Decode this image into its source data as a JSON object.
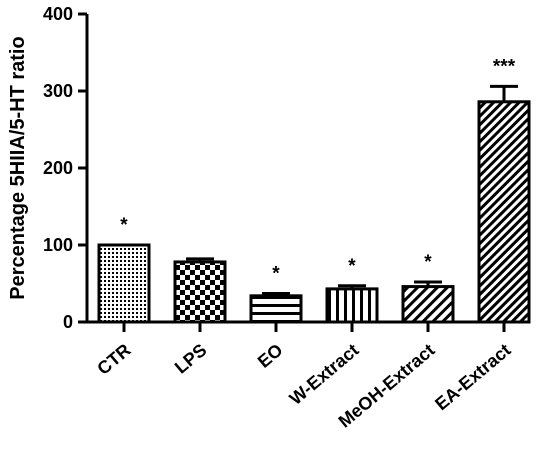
{
  "chart_data": {
    "type": "bar",
    "title": "",
    "xlabel": "",
    "ylabel": "Percentage 5HIIA/5-HT ratio",
    "ylim": [
      0,
      400
    ],
    "y_ticks": [
      0,
      100,
      200,
      300,
      400
    ],
    "y_tick_labels": [
      "0",
      "100",
      "200",
      "300",
      "400"
    ],
    "grid": false,
    "legend": "none",
    "categories": [
      "CTR",
      "LPS",
      "EO",
      "W-Extract",
      "MeOH-Extract",
      "EA-Extract"
    ],
    "values": [
      100,
      78,
      34,
      43,
      46,
      286
    ],
    "error_upper": [
      0,
      4,
      3,
      4,
      6,
      20
    ],
    "significance": [
      "*",
      "",
      "*",
      "*",
      "*",
      "***"
    ],
    "fill_patterns": [
      "dots",
      "checker",
      "horizontal-stripes",
      "vertical-stripes",
      "diagonal-fine",
      "diagonal-dense"
    ],
    "colors": {
      "bar_stroke": "#000000",
      "axis": "#000000",
      "fill_background": "#ffffff"
    }
  }
}
